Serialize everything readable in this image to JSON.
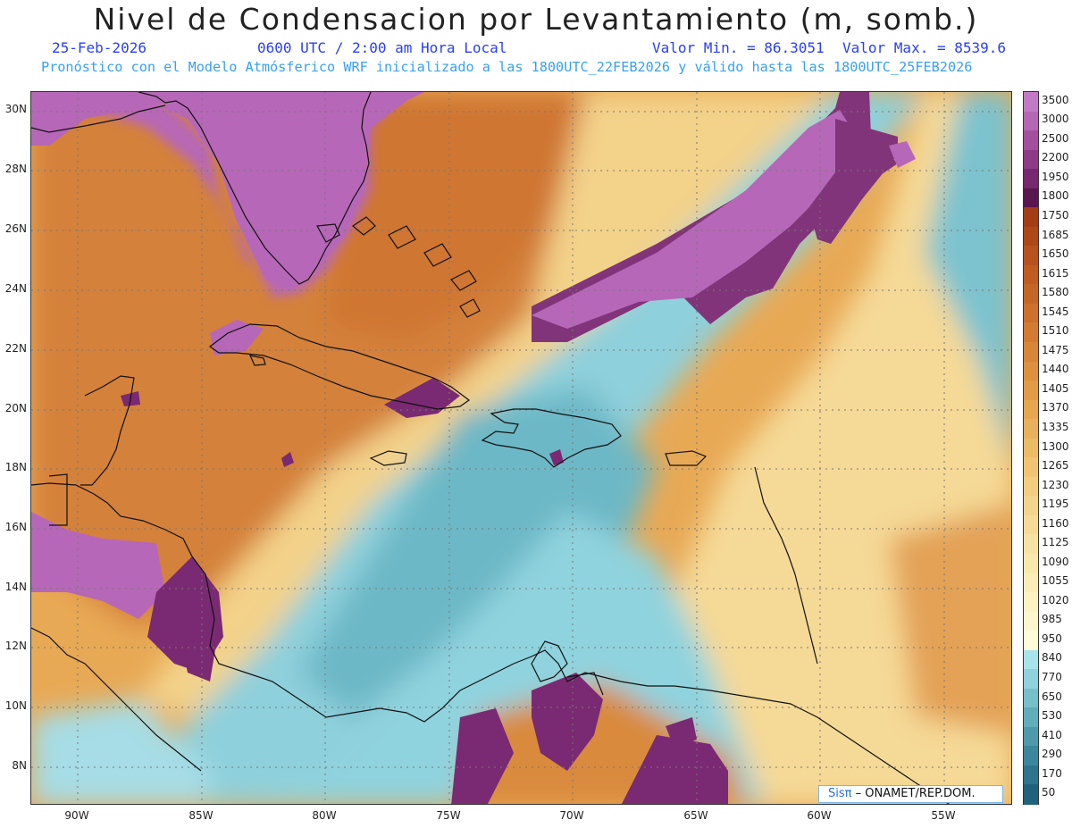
{
  "header": {
    "title": "Nivel de Condensacion por Levantamiento (m, somb.)",
    "date": "25-Feb-2026",
    "time": "0600 UTC / 2:00 am Hora Local",
    "vmin": "Valor Min. = 86.3051",
    "vmax": "Valor Max. = 8539.6",
    "forecast": "Pronóstico con el Modelo Atmósferico WRF inicializado a las 1800UTC_22FEB2026 y válido hasta las  1800UTC_25FEB2026"
  },
  "axes": {
    "lat_labels": [
      "30N",
      "28N",
      "26N",
      "24N",
      "22N",
      "20N",
      "18N",
      "16N",
      "14N",
      "12N",
      "10N",
      "8N"
    ],
    "lon_labels": [
      "90W",
      "85W",
      "80W",
      "75W",
      "70W",
      "65W",
      "60W",
      "55W"
    ]
  },
  "colorbar": {
    "labels": [
      "3500",
      "3000",
      "2500",
      "2200",
      "1950",
      "1800",
      "1750",
      "1685",
      "1650",
      "1615",
      "1580",
      "1545",
      "1510",
      "1475",
      "1440",
      "1405",
      "1370",
      "1335",
      "1300",
      "1265",
      "1230",
      "1195",
      "1160",
      "1125",
      "1090",
      "1055",
      "1020",
      "985",
      "950",
      "840",
      "770",
      "650",
      "530",
      "410",
      "290",
      "170",
      "50"
    ],
    "colors": [
      "#c37ac6",
      "#b566b5",
      "#a3509f",
      "#8d3a87",
      "#772870",
      "#5a1651",
      "#a33d16",
      "#ad4818",
      "#b6521d",
      "#bf5c20",
      "#c66626",
      "#cd702b",
      "#d37b31",
      "#d88638",
      "#dd913f",
      "#e29c47",
      "#e6a750",
      "#e9b15b",
      "#ecbb66",
      "#efc472",
      "#f2cd7f",
      "#f4d48c",
      "#f6db98",
      "#f8e2a3",
      "#f9e8ae",
      "#fbedb8",
      "#fcf2c3",
      "#fdf6cd",
      "#fefbd8",
      "#a8e2ea",
      "#8fd1dc",
      "#78bfcc",
      "#62adbc",
      "#4e9aac",
      "#3d879c",
      "#2d748c",
      "#1f627b"
    ]
  },
  "map_colors": {
    "orange": "#d9883c",
    "light_orange": "#eab060",
    "yellow": "#f6dc9a",
    "cyan": "#8ed3de",
    "teal": "#5aaebe",
    "purple": "#b566b5",
    "dark_purple": "#7a2a72",
    "land_outline": "#111111"
  },
  "credit": {
    "brand": "Sisπ",
    "org": "– ONAMET/REP.DOM."
  }
}
